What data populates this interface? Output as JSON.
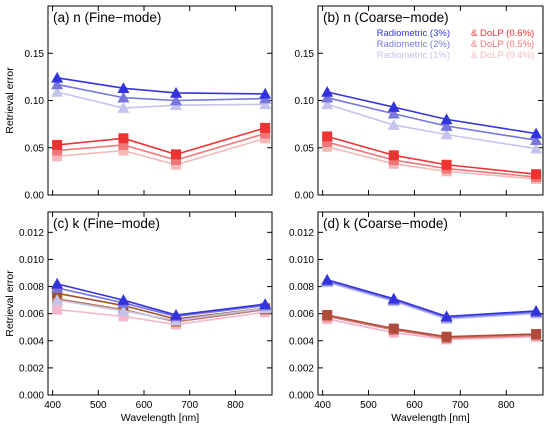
{
  "chart_data": [
    {
      "type": "line",
      "title": "(a) n (Fine−mode)",
      "ylabel": "Retrieval error",
      "xlabel": "",
      "x": [
        410,
        555,
        670,
        865
      ],
      "xlim": [
        390,
        880
      ],
      "ylim": [
        0.0,
        0.2
      ],
      "yticks": [
        "0.00",
        "0.05",
        "0.10",
        "0.15"
      ],
      "xticks": [],
      "series": [
        {
          "group": "radiometric",
          "values": [
            0.124,
            0.113,
            0.108,
            0.107
          ]
        },
        {
          "group": "radiometric",
          "values": [
            0.117,
            0.103,
            0.1,
            0.102
          ]
        },
        {
          "group": "radiometric",
          "values": [
            0.109,
            0.092,
            0.095,
            0.096
          ]
        },
        {
          "group": "dolp",
          "values": [
            0.053,
            0.06,
            0.043,
            0.071
          ]
        },
        {
          "group": "dolp",
          "values": [
            0.047,
            0.053,
            0.037,
            0.065
          ]
        },
        {
          "group": "dolp",
          "values": [
            0.041,
            0.047,
            0.032,
            0.06
          ]
        }
      ]
    },
    {
      "type": "line",
      "title": "(b) n (Coarse−mode)",
      "ylabel": "",
      "xlabel": "",
      "x": [
        410,
        555,
        670,
        865
      ],
      "xlim": [
        390,
        880
      ],
      "ylim": [
        0.0,
        0.2
      ],
      "yticks": [
        "0.00",
        "0.05",
        "0.10",
        "0.15"
      ],
      "xticks": [],
      "legend": [
        {
          "label": "Radiometric (3%)",
          "color": "#3333dd"
        },
        {
          "label": "Radiometric (2%)",
          "color": "#7777dd"
        },
        {
          "label": "Radiometric (1%)",
          "color": "#c4c4ee"
        },
        {
          "label": "& DoLP (0.6%)",
          "color": "#ee3333"
        },
        {
          "label": "& DoLP (0.5%)",
          "color": "#f07777"
        },
        {
          "label": "& DoLP (0.4%)",
          "color": "#f5b8b8"
        }
      ],
      "series": [
        {
          "group": "radiometric",
          "values": [
            0.109,
            0.093,
            0.08,
            0.065
          ]
        },
        {
          "group": "radiometric",
          "values": [
            0.103,
            0.086,
            0.073,
            0.058
          ]
        },
        {
          "group": "radiometric",
          "values": [
            0.096,
            0.074,
            0.064,
            0.049
          ]
        },
        {
          "group": "dolp",
          "values": [
            0.062,
            0.042,
            0.032,
            0.022
          ]
        },
        {
          "group": "dolp",
          "values": [
            0.056,
            0.037,
            0.028,
            0.019
          ]
        },
        {
          "group": "dolp",
          "values": [
            0.051,
            0.033,
            0.025,
            0.017
          ]
        }
      ]
    },
    {
      "type": "line",
      "title": "(c) k (Fine−mode)",
      "ylabel": "Retrieval error",
      "xlabel": "Wavelength [nm]",
      "x": [
        410,
        555,
        670,
        865
      ],
      "xlim": [
        390,
        880
      ],
      "ylim": [
        0.0,
        0.0135
      ],
      "yticks": [
        "0.000",
        "0.002",
        "0.004",
        "0.006",
        "0.008",
        "0.010",
        "0.012"
      ],
      "xticks": [
        "400",
        "500",
        "600",
        "700",
        "800"
      ],
      "series": [
        {
          "group": "radiometric",
          "values": [
            0.0082,
            0.007,
            0.0059,
            0.0067
          ]
        },
        {
          "group": "radiometric",
          "values": [
            0.0079,
            0.0068,
            0.0058,
            0.0066
          ]
        },
        {
          "group": "radiometric",
          "values": [
            0.007,
            0.0062,
            0.0055,
            0.0064
          ]
        },
        {
          "group": "dolp",
          "values": [
            0.0075,
            0.0066,
            0.0056,
            0.0064
          ]
        },
        {
          "group": "dolp",
          "values": [
            0.0071,
            0.0063,
            0.0054,
            0.0063
          ]
        },
        {
          "group": "dolp",
          "values": [
            0.0063,
            0.0058,
            0.0052,
            0.0061
          ]
        }
      ]
    },
    {
      "type": "line",
      "title": "(d) k (Coarse−mode)",
      "ylabel": "",
      "xlabel": "Wavelength [nm]",
      "x": [
        410,
        555,
        670,
        865
      ],
      "xlim": [
        390,
        880
      ],
      "ylim": [
        0.0,
        0.0135
      ],
      "yticks": [
        "0.000",
        "0.002",
        "0.004",
        "0.006",
        "0.008",
        "0.010",
        "0.012"
      ],
      "xticks": [
        "400",
        "500",
        "600",
        "700",
        "800"
      ],
      "series": [
        {
          "group": "radiometric",
          "values": [
            0.0085,
            0.0071,
            0.0058,
            0.0062
          ]
        },
        {
          "group": "radiometric",
          "values": [
            0.0084,
            0.007,
            0.0057,
            0.0061
          ]
        },
        {
          "group": "radiometric",
          "values": [
            0.0083,
            0.0069,
            0.0056,
            0.006
          ]
        },
        {
          "group": "dolp",
          "values": [
            0.0059,
            0.0049,
            0.0043,
            0.0045
          ]
        },
        {
          "group": "dolp",
          "values": [
            0.0058,
            0.0048,
            0.0042,
            0.0044
          ]
        },
        {
          "group": "dolp",
          "values": [
            0.0056,
            0.0046,
            0.0041,
            0.0043
          ]
        }
      ]
    }
  ],
  "colors": {
    "radiometric": [
      "#3333dd",
      "#7777dd",
      "#c4c4ee"
    ],
    "dolp": [
      "#ee3333",
      "#f07777",
      "#f5b8b8"
    ],
    "k_dolp_fine": [
      "#a0522d",
      "#c07a5a",
      "#f2b8d0"
    ],
    "k_dolp_coarse": [
      "#b04a3a",
      "#d87a6a",
      "#f5b0cc"
    ]
  }
}
